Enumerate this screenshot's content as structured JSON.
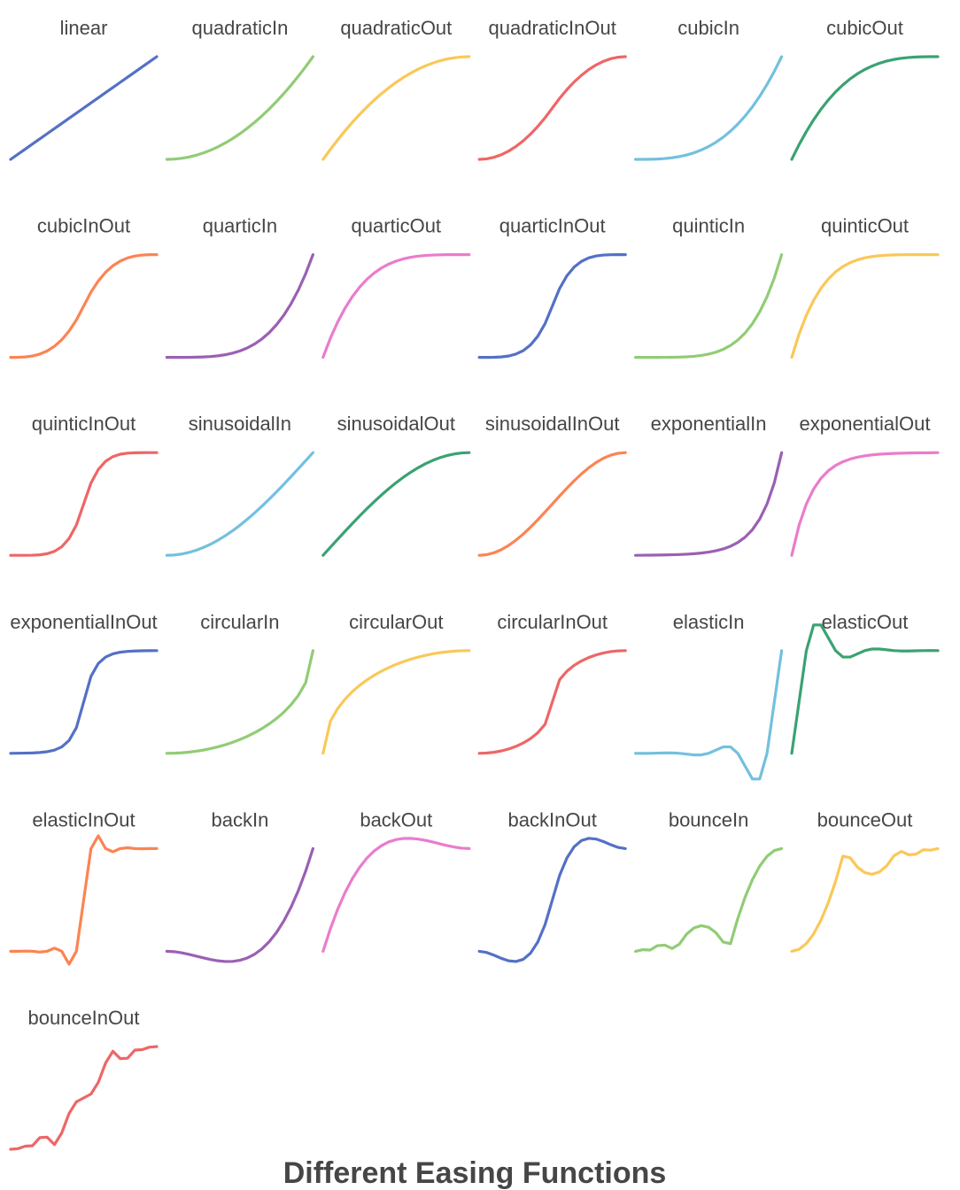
{
  "chart_data": {
    "type": "line",
    "title": "Different Easing Functions",
    "x_range": [
      0,
      1
    ],
    "grid": false,
    "panels": [
      {
        "name": "linear",
        "color": "#5470c6",
        "easing": "linear"
      },
      {
        "name": "quadraticIn",
        "color": "#91cc75",
        "easing": "quadraticIn"
      },
      {
        "name": "quadraticOut",
        "color": "#fac858",
        "easing": "quadraticOut"
      },
      {
        "name": "quadraticInOut",
        "color": "#ee6666",
        "easing": "quadraticInOut"
      },
      {
        "name": "cubicIn",
        "color": "#73c0de",
        "easing": "cubicIn"
      },
      {
        "name": "cubicOut",
        "color": "#3ba272",
        "easing": "cubicOut"
      },
      {
        "name": "cubicInOut",
        "color": "#fc8452",
        "easing": "cubicInOut"
      },
      {
        "name": "quarticIn",
        "color": "#9a60b4",
        "easing": "quarticIn"
      },
      {
        "name": "quarticOut",
        "color": "#ea7ccc",
        "easing": "quarticOut"
      },
      {
        "name": "quarticInOut",
        "color": "#5470c6",
        "easing": "quarticInOut"
      },
      {
        "name": "quinticIn",
        "color": "#91cc75",
        "easing": "quinticIn"
      },
      {
        "name": "quinticOut",
        "color": "#fac858",
        "easing": "quinticOut"
      },
      {
        "name": "quinticInOut",
        "color": "#ee6666",
        "easing": "quinticInOut"
      },
      {
        "name": "sinusoidalIn",
        "color": "#73c0de",
        "easing": "sinusoidalIn"
      },
      {
        "name": "sinusoidalOut",
        "color": "#3ba272",
        "easing": "sinusoidalOut"
      },
      {
        "name": "sinusoidalInOut",
        "color": "#fc8452",
        "easing": "sinusoidalInOut"
      },
      {
        "name": "exponentialIn",
        "color": "#9a60b4",
        "easing": "exponentialIn"
      },
      {
        "name": "exponentialOut",
        "color": "#ea7ccc",
        "easing": "exponentialOut"
      },
      {
        "name": "exponentialInOut",
        "color": "#5470c6",
        "easing": "exponentialInOut"
      },
      {
        "name": "circularIn",
        "color": "#91cc75",
        "easing": "circularIn"
      },
      {
        "name": "circularOut",
        "color": "#fac858",
        "easing": "circularOut"
      },
      {
        "name": "circularInOut",
        "color": "#ee6666",
        "easing": "circularInOut"
      },
      {
        "name": "elasticIn",
        "color": "#73c0de",
        "easing": "elasticIn"
      },
      {
        "name": "elasticOut",
        "color": "#3ba272",
        "easing": "elasticOut"
      },
      {
        "name": "elasticInOut",
        "color": "#fc8452",
        "easing": "elasticInOut"
      },
      {
        "name": "backIn",
        "color": "#9a60b4",
        "easing": "backIn"
      },
      {
        "name": "backOut",
        "color": "#ea7ccc",
        "easing": "backOut"
      },
      {
        "name": "backInOut",
        "color": "#5470c6",
        "easing": "backInOut"
      },
      {
        "name": "bounceIn",
        "color": "#91cc75",
        "easing": "bounceIn"
      },
      {
        "name": "bounceOut",
        "color": "#fac858",
        "easing": "bounceOut"
      },
      {
        "name": "bounceInOut",
        "color": "#ee6666",
        "easing": "bounceInOut"
      }
    ]
  }
}
